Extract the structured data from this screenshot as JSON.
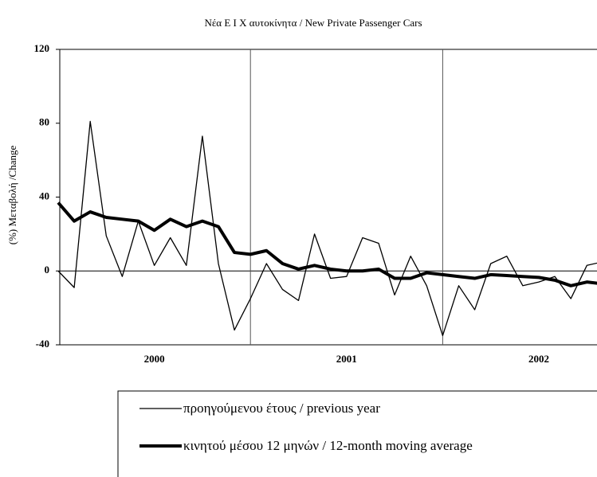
{
  "chart_data": {
    "type": "line",
    "title": "Νέα Ε Ι Χ αυτοκίνητα / New Private Passenger Cars",
    "y_label": "(%) Μεταβολή /Change",
    "categories": [
      null,
      null,
      null,
      null,
      null,
      null,
      null,
      null,
      null,
      null,
      null,
      null,
      null,
      null,
      null,
      null,
      null,
      null,
      null,
      null,
      null,
      null,
      null,
      null,
      null,
      null,
      null,
      null,
      null,
      null,
      null,
      null,
      null,
      null,
      null
    ],
    "year_labels": [
      "2000",
      "2001",
      "2002"
    ],
    "series": [
      {
        "name": "προηγούμενου έτους / previous year",
        "color": "#000000",
        "width": 1.3,
        "values": [
          0,
          -9,
          81,
          19,
          -3,
          27,
          3,
          18,
          3,
          73,
          4,
          -32,
          -15,
          4,
          -10,
          -16,
          20,
          -4,
          -3,
          18,
          15,
          -13,
          8,
          -8,
          -35,
          -8,
          -21,
          4,
          8,
          -8,
          -6,
          -3,
          -15,
          3,
          5
        ]
      },
      {
        "name": "κινητού μέσου 12 μηνών / 12-month moving average",
        "color": "#000000",
        "width": 4,
        "values": [
          37,
          27,
          32,
          29,
          28,
          27,
          22,
          28,
          24,
          27,
          24,
          10,
          9,
          11,
          4,
          1,
          3,
          1,
          0,
          0,
          1,
          -4,
          -4,
          -1,
          -2,
          -3,
          -4,
          -2,
          -2.5,
          -3,
          -3.5,
          -5,
          -8,
          -6,
          -7
        ]
      }
    ],
    "ylim": [
      -40,
      120
    ],
    "yticks": [
      -40,
      0,
      40,
      80,
      120
    ]
  }
}
